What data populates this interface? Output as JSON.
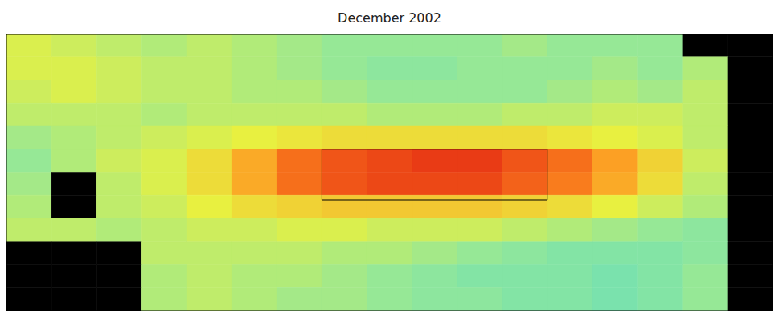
{
  "chart_data": {
    "type": "heatmap",
    "title": "December 2002",
    "xlim": [
      120,
      290
    ],
    "xticks": [
      140,
      160,
      180,
      200,
      220,
      240,
      260,
      280
    ],
    "ylim": [
      -30,
      30
    ],
    "yticks": [
      -20,
      -10,
      0,
      10,
      20
    ],
    "tick_labels": false,
    "grid": false,
    "clim": [
      -2.5,
      2.5
    ],
    "box": {
      "x": [
        190,
        240
      ],
      "y": [
        -6,
        5
      ]
    },
    "cells": {
      "x": [
        120,
        130,
        140,
        150,
        160,
        170,
        180,
        190,
        200,
        210,
        220,
        230,
        240,
        250,
        260,
        270,
        280,
        290
      ],
      "y": [
        30,
        25,
        20,
        15,
        10,
        5,
        0,
        -5,
        -10,
        -15,
        -20,
        -25,
        -30
      ],
      "values": [
        [
          0.5,
          0.4,
          0.3,
          0.2,
          0.3,
          0.2,
          0.1,
          0.0,
          0.0,
          0.0,
          0.0,
          0.1,
          0.0,
          0.0,
          0.0,
          null,
          null
        ],
        [
          0.5,
          0.5,
          0.4,
          0.3,
          0.3,
          0.2,
          0.1,
          0.0,
          -0.1,
          -0.1,
          0.0,
          0.0,
          0.0,
          0.1,
          0.0,
          0.2,
          null
        ],
        [
          0.4,
          0.5,
          0.4,
          0.3,
          0.3,
          0.2,
          0.2,
          0.1,
          0.0,
          0.0,
          0.0,
          0.0,
          0.1,
          0.2,
          0.1,
          0.3,
          null
        ],
        [
          0.3,
          0.3,
          0.3,
          0.2,
          0.3,
          0.3,
          0.3,
          0.3,
          0.2,
          0.2,
          0.2,
          0.3,
          0.3,
          0.4,
          0.4,
          0.3,
          null
        ],
        [
          0.1,
          0.2,
          0.3,
          0.4,
          0.5,
          0.6,
          0.7,
          0.8,
          0.8,
          0.8,
          0.8,
          0.8,
          0.7,
          0.6,
          0.5,
          0.3,
          null
        ],
        [
          0.0,
          0.2,
          0.4,
          0.5,
          0.8,
          1.3,
          1.8,
          2.0,
          2.1,
          2.2,
          2.2,
          2.0,
          1.8,
          1.4,
          0.9,
          0.4,
          null
        ],
        [
          0.1,
          null,
          0.3,
          0.5,
          0.8,
          1.3,
          1.8,
          2.0,
          2.1,
          2.1,
          2.1,
          1.9,
          1.7,
          1.3,
          0.8,
          0.3,
          null
        ],
        [
          0.2,
          null,
          0.3,
          0.4,
          0.6,
          0.8,
          0.9,
          1.0,
          1.0,
          1.0,
          1.0,
          0.9,
          0.8,
          0.6,
          0.4,
          0.2,
          null
        ],
        [
          0.3,
          0.3,
          0.2,
          0.3,
          0.4,
          0.4,
          0.5,
          0.5,
          0.4,
          0.4,
          0.4,
          0.3,
          0.2,
          0.1,
          0.0,
          -0.1,
          null
        ],
        [
          null,
          null,
          null,
          0.3,
          0.3,
          0.3,
          0.3,
          0.2,
          0.2,
          0.1,
          0.0,
          -0.1,
          -0.2,
          -0.2,
          -0.2,
          -0.1,
          null
        ],
        [
          null,
          null,
          null,
          0.2,
          0.3,
          0.2,
          0.2,
          0.1,
          0.0,
          -0.1,
          -0.2,
          -0.2,
          -0.2,
          -0.3,
          -0.2,
          0.0,
          null
        ],
        [
          null,
          null,
          null,
          0.2,
          0.3,
          0.2,
          0.1,
          0.1,
          0.0,
          -0.1,
          -0.1,
          -0.2,
          -0.2,
          -0.3,
          -0.2,
          0.0,
          null
        ]
      ]
    }
  }
}
